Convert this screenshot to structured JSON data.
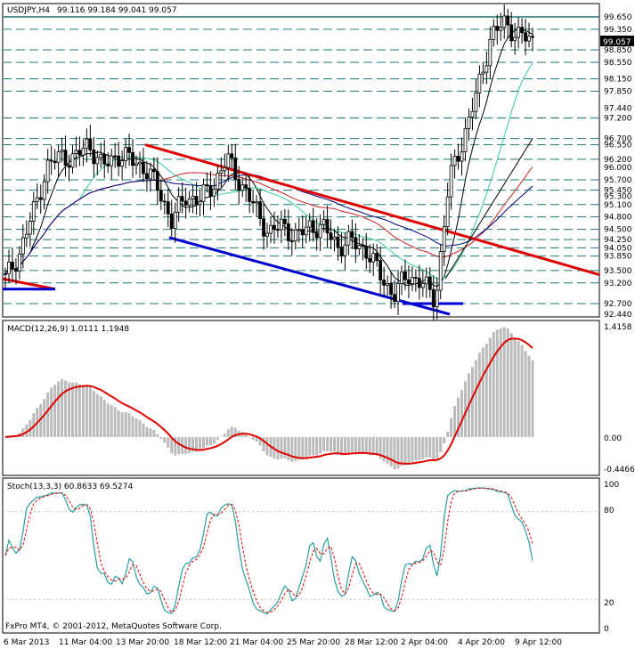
{
  "header": {
    "symbol": "USDJPY,H4",
    "ohlc": "99.116 99.184 99.041 99.057"
  },
  "price_axis": {
    "labels": [
      "99.650",
      "99.350",
      "98.850",
      "98.550",
      "98.150",
      "97.850",
      "97.440",
      "97.200",
      "96.700",
      "96.550",
      "96.200",
      "96.000",
      "95.700",
      "95.450",
      "95.300",
      "95.100",
      "94.800",
      "94.500",
      "94.250",
      "94.050",
      "93.850",
      "93.500",
      "93.200",
      "92.700",
      "92.440"
    ],
    "current_price": "99.057",
    "current_price_value": 99.057
  },
  "macd_axis": {
    "top": "1.4158",
    "zero": "0.00",
    "bottom": "-0.4466"
  },
  "stoch_axis": {
    "labels": [
      "100",
      "80",
      "20",
      "0"
    ]
  },
  "time_axis": {
    "labels": [
      "6 Mar 2013",
      "11 Mar 04:00",
      "13 Mar 20:00",
      "18 Mar 12:00",
      "21 Mar 04:00",
      "25 Mar 20:00",
      "28 Mar 12:00",
      "2 Apr 04:00",
      "4 Apr 20:00",
      "9 Apr 12:00"
    ]
  },
  "macd": {
    "title": "MACD(12,26,9) 1.0111 1.1948"
  },
  "stoch": {
    "title": "Stoch(13,3,3) 60.8633 69.5274"
  },
  "footer": {
    "copyright": "FxPro MT4, © 2001-2012, MetaQuotes Software Corp."
  },
  "colors": {
    "candles": "#000000",
    "level_lines": "#1a7a7a",
    "trend_red": "#e00000",
    "trend_blue": "#0000d0",
    "ma_black": "#000000",
    "ma_green": "#33cc99",
    "ma_red": "#cc2222",
    "ma_blue": "#000080",
    "macd_hist": "#bbbbbb",
    "macd_signal": "#e00000",
    "stoch_main": "#2aa0a0",
    "stoch_signal": "#e00000"
  },
  "chart_data": {
    "type": "line",
    "instrument": "USDJPY",
    "timeframe": "H4",
    "ylim": [
      92.44,
      99.65
    ],
    "close_path": [
      [
        "6 Mar 2013",
        93.3
      ],
      [
        "",
        93.9
      ],
      [
        "",
        94.9
      ],
      [
        "",
        96.0
      ],
      [
        "11 Mar 04:00",
        96.3
      ],
      [
        "",
        96.2
      ],
      [
        "",
        96.6
      ],
      [
        "",
        96.0
      ],
      [
        "",
        96.3
      ],
      [
        "13 Mar 20:00",
        96.2
      ],
      [
        "",
        96.0
      ],
      [
        "",
        95.5
      ],
      [
        "",
        94.7
      ],
      [
        "18 Mar 12:00",
        95.3
      ],
      [
        "",
        95.2
      ],
      [
        "",
        95.6
      ],
      [
        "",
        96.2
      ],
      [
        "21 Mar 04:00",
        95.6
      ],
      [
        "",
        95.0
      ],
      [
        "",
        94.4
      ],
      [
        "",
        94.6
      ],
      [
        "25 Mar 20:00",
        94.3
      ],
      [
        "",
        94.6
      ],
      [
        "",
        94.5
      ],
      [
        "",
        94.1
      ],
      [
        "28 Mar 12:00",
        94.2
      ],
      [
        "",
        94.0
      ],
      [
        "",
        93.4
      ],
      [
        "",
        92.9
      ],
      [
        "2 Apr 04:00",
        93.4
      ],
      [
        "",
        93.2
      ],
      [
        "",
        92.8
      ],
      [
        "",
        95.7
      ],
      [
        "4 Apr 20:00",
        96.7
      ],
      [
        "",
        97.8
      ],
      [
        "",
        99.2
      ],
      [
        "",
        99.5
      ],
      [
        "9 Apr 12:00",
        99.2
      ],
      [
        "",
        99.057
      ]
    ],
    "levels": [
      99.65,
      99.35,
      98.85,
      98.55,
      98.15,
      97.85,
      97.2,
      96.7,
      96.55,
      96.2,
      95.7,
      95.45,
      95.1,
      94.8,
      94.5,
      94.25,
      94.05,
      93.85,
      93.5,
      93.2,
      92.7
    ],
    "indicators": [
      "MACD(12,26,9) 1.0111 1.1948",
      "Stoch(13,3,3) 60.8633 69.5274"
    ]
  }
}
